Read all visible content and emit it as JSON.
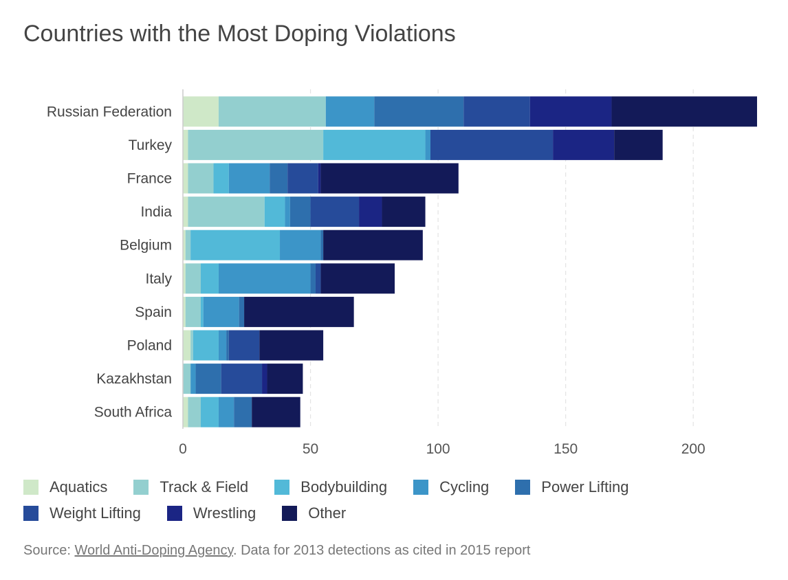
{
  "chart_data": {
    "type": "bar",
    "orientation": "horizontal",
    "stacked": true,
    "title": "Countries with the Most Doping Violations",
    "categories": [
      "Russian Federation",
      "Turkey",
      "France",
      "India",
      "Belgium",
      "Italy",
      "Spain",
      "Poland",
      "Kazakhstan",
      "South Africa"
    ],
    "xlim": [
      0,
      225
    ],
    "xticks": [
      0,
      50,
      100,
      150,
      200
    ],
    "grid": true,
    "legend_position": "bottom",
    "series": [
      {
        "name": "Aquatics",
        "color": "#cfe8c8",
        "values": [
          14,
          2,
          2,
          2,
          1,
          1,
          1,
          3,
          0,
          2
        ]
      },
      {
        "name": "Track & Field",
        "color": "#93cfcf",
        "values": [
          42,
          53,
          10,
          30,
          2,
          6,
          6,
          1,
          3,
          5
        ]
      },
      {
        "name": "Bodybuilding",
        "color": "#52b9d8",
        "values": [
          0,
          40,
          6,
          8,
          35,
          7,
          1,
          10,
          0,
          7
        ]
      },
      {
        "name": "Cycling",
        "color": "#3c95c8",
        "values": [
          19,
          2,
          16,
          2,
          16,
          36,
          14,
          3,
          2,
          6
        ]
      },
      {
        "name": "Power Lifting",
        "color": "#2e6fad",
        "values": [
          35,
          0,
          7,
          8,
          1,
          2,
          2,
          1,
          10,
          7
        ]
      },
      {
        "name": "Weight Lifting",
        "color": "#264b9a",
        "values": [
          26,
          48,
          12,
          19,
          0,
          2,
          0,
          12,
          16,
          0
        ]
      },
      {
        "name": "Wrestling",
        "color": "#1b2584",
        "values": [
          32,
          24,
          1,
          9,
          0,
          0,
          0,
          0,
          2,
          0
        ]
      },
      {
        "name": "Other",
        "color": "#131a58",
        "values": [
          57,
          19,
          54,
          17,
          39,
          29,
          43,
          25,
          14,
          19
        ]
      }
    ]
  },
  "source": {
    "prefix": "Source: ",
    "link_text": "World Anti-Doping Agency",
    "suffix": ". Data for 2013 detections as cited in 2015 report"
  }
}
